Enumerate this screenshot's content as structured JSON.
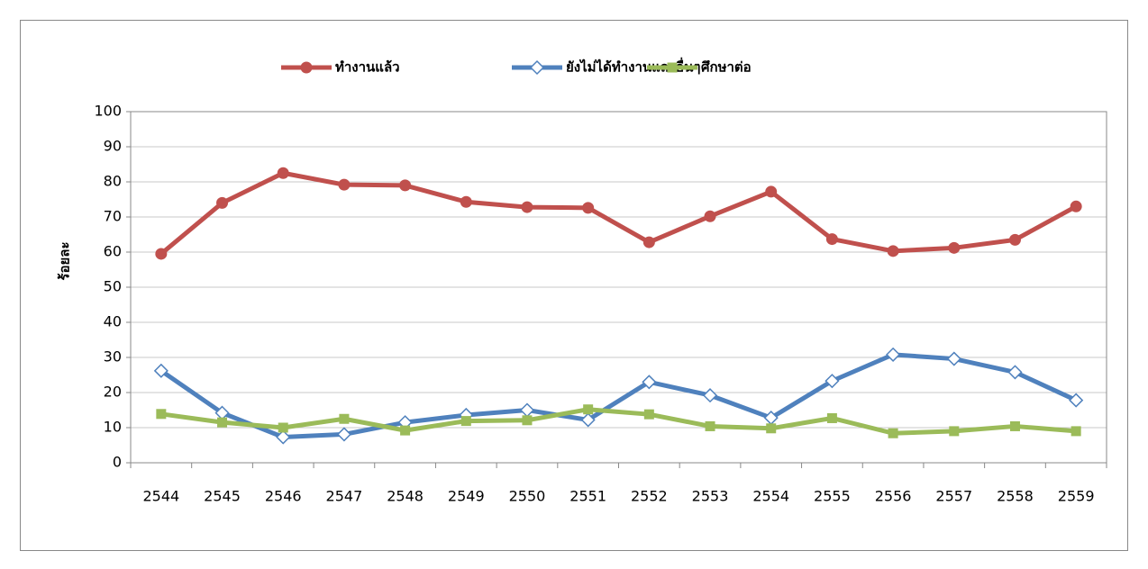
{
  "chart_data": {
    "type": "line",
    "categories": [
      "2544",
      "2545",
      "2546",
      "2547",
      "2548",
      "2549",
      "2550",
      "2551",
      "2552",
      "2553",
      "2554",
      "2555",
      "2556",
      "2557",
      "2558",
      "2559"
    ],
    "series": [
      {
        "name": "ทำงานแล้ว",
        "color": "#c0504d",
        "marker": "circle",
        "values": [
          59.5,
          74,
          82.5,
          79.2,
          79,
          74.3,
          72.8,
          72.6,
          62.8,
          70.2,
          77.2,
          63.7,
          60.3,
          61.2,
          63.5,
          73
        ]
      },
      {
        "name": "ยังไม่ได้ทำงานและอื่นๆ",
        "color": "#4f81bd",
        "marker": "diamond",
        "values": [
          26.2,
          14.2,
          7.3,
          8.1,
          11.5,
          13.6,
          15,
          12.2,
          23,
          19.2,
          12.8,
          23.3,
          30.8,
          29.6,
          25.8,
          17.8
        ]
      },
      {
        "name": "ศึกษาต่อ",
        "color": "#9bbb59",
        "marker": "square",
        "values": [
          13.9,
          11.5,
          10,
          12.5,
          9.2,
          11.9,
          12.1,
          15.2,
          13.8,
          10.4,
          9.8,
          12.7,
          8.4,
          9,
          10.4,
          9
        ]
      }
    ],
    "y_label": "ร้อยละ",
    "ylim": [
      0,
      100
    ],
    "yticks": [
      0,
      10,
      20,
      30,
      40,
      50,
      60,
      70,
      80,
      90,
      100
    ],
    "grid": true,
    "legend": "top"
  }
}
